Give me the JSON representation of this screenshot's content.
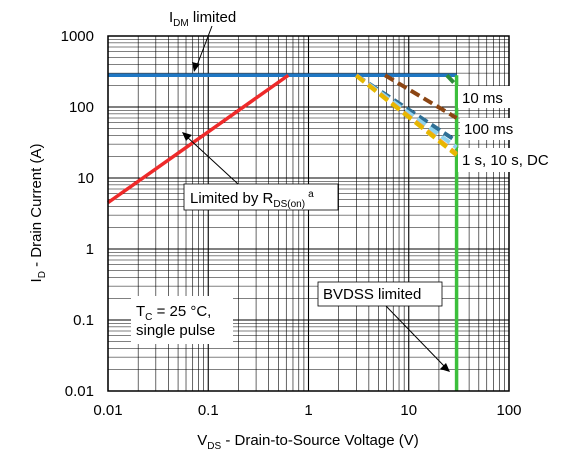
{
  "chart_data": {
    "type": "line",
    "scale": {
      "x": "log",
      "y": "log"
    },
    "xlim": [
      0.01,
      100
    ],
    "ylim": [
      0.01,
      1000
    ],
    "grid": true,
    "xticks": [
      "0.01",
      "0.1",
      "1",
      "10",
      "100"
    ],
    "yticks": [
      "1000",
      "100",
      "10",
      "1",
      "0.1",
      "0.01"
    ],
    "xlabel": {
      "main": "V",
      "sub": "DS",
      "rest": " - Drain-to-Source Voltage (V)"
    },
    "ylabel": {
      "main": "I",
      "sub": "D",
      "rest": " - Drain Current (A)"
    },
    "series": [
      {
        "name": "IDM limited",
        "color": "#1f77c4",
        "style": "solid",
        "x": [
          0.01,
          30
        ],
        "y": [
          280,
          280
        ]
      },
      {
        "name": "Limited by RDS(on)",
        "color": "#ee2a2a",
        "style": "solid",
        "x": [
          0.01,
          0.63
        ],
        "y": [
          4.5,
          280
        ]
      },
      {
        "name": "BVDSS limited",
        "color": "#3cbf3c",
        "style": "solid",
        "x": [
          30,
          30
        ],
        "y": [
          280,
          0.01
        ]
      },
      {
        "name": "10 ms",
        "color": "#2e8b3a",
        "style": "dashed",
        "x": [
          24,
          30
        ],
        "y": [
          280,
          200
        ]
      },
      {
        "name": "10 ms",
        "color": "#8b4513",
        "style": "dashed",
        "x": [
          5.8,
          30
        ],
        "y": [
          280,
          70
        ]
      },
      {
        "name": "100 ms",
        "color": "#2e6f95",
        "style": "dashed",
        "x": [
          3,
          30
        ],
        "y": [
          280,
          33
        ]
      },
      {
        "name": "1 s",
        "color": "#8fd3ee",
        "style": "dashed",
        "x": [
          3,
          30
        ],
        "y": [
          280,
          27
        ]
      },
      {
        "name": "10 s",
        "color": "#f5a623",
        "style": "dashed",
        "x": [
          3,
          30
        ],
        "y": [
          280,
          22
        ]
      },
      {
        "name": "DC",
        "color": "#e6b800",
        "style": "dashed",
        "x": [
          3,
          30
        ],
        "y": [
          275,
          21
        ]
      }
    ],
    "annotations": {
      "idm": {
        "main": "I",
        "sub": "DM",
        "rest": " limited"
      },
      "rds": {
        "main": "Limited by R",
        "sub": "DS(on)",
        "sup": "a"
      },
      "bvdss": "BVDSS limited",
      "tc_line1": "T",
      "tc_sub": "C",
      "tc_rest": " = 25 °C,",
      "tc_line2": "single pulse",
      "label_10ms": "10 ms",
      "label_100ms": "100 ms",
      "label_dc": "1 s, 10 s, DC"
    }
  }
}
